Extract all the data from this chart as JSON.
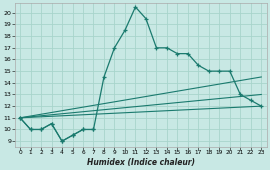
{
  "xlabel": "Humidex (Indice chaleur)",
  "bg_color": "#c8e8e4",
  "grid_color": "#a8d4cc",
  "line_color": "#1a7a6e",
  "xlim": [
    -0.5,
    23.5
  ],
  "ylim": [
    8.5,
    20.8
  ],
  "yticks": [
    9,
    10,
    11,
    12,
    13,
    14,
    15,
    16,
    17,
    18,
    19,
    20
  ],
  "xticks": [
    0,
    1,
    2,
    3,
    4,
    5,
    6,
    7,
    8,
    9,
    10,
    11,
    12,
    13,
    14,
    15,
    16,
    17,
    18,
    19,
    20,
    21,
    22,
    23
  ],
  "spiky_x": [
    0,
    1,
    2,
    3,
    4,
    5,
    6,
    7,
    8,
    9,
    10,
    11,
    12,
    13,
    14,
    15,
    16,
    17,
    18,
    19,
    20,
    21,
    22,
    23
  ],
  "spiky_y": [
    11.0,
    10.0,
    10.0,
    10.5,
    9.0,
    9.5,
    10.0,
    10.0,
    14.5,
    17.0,
    18.5,
    20.5,
    19.5,
    17.0,
    17.0,
    16.5,
    16.5,
    15.5,
    15.0,
    15.0,
    15.0,
    13.0,
    12.5,
    12.0
  ],
  "trend1_y": [
    11.0,
    12.0
  ],
  "trend2_y": [
    11.0,
    13.0
  ],
  "trend3_y": [
    11.0,
    14.5
  ],
  "lower_x": [
    0,
    1,
    2,
    3,
    4,
    5,
    6,
    7
  ],
  "lower_y": [
    11.0,
    10.0,
    10.0,
    10.5,
    9.0,
    9.5,
    10.0,
    10.0
  ]
}
